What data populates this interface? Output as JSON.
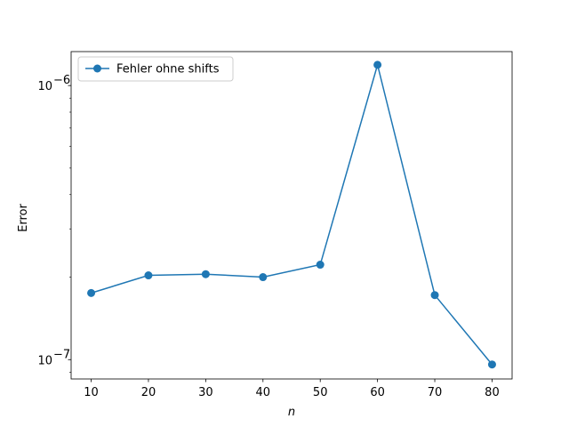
{
  "chart_data": {
    "type": "line",
    "title": "",
    "xlabel": "n",
    "ylabel": "Error",
    "yscale": "log",
    "x": [
      10,
      20,
      30,
      40,
      50,
      60,
      70,
      80
    ],
    "xticks": [
      10,
      20,
      30,
      40,
      50,
      60,
      70,
      80
    ],
    "xlim": [
      6.5,
      83.5
    ],
    "ylim": [
      8.5e-08,
      1.33e-06
    ],
    "yticks": [
      {
        "value": 1e-07,
        "base": "10",
        "exp": "−7"
      },
      {
        "value": 1e-06,
        "base": "10",
        "exp": "−6"
      }
    ],
    "series": [
      {
        "name": "Fehler ohne shifts",
        "color": "#1f77b4",
        "marker": "circle",
        "values": [
          1.75e-07,
          2.03e-07,
          2.05e-07,
          2e-07,
          2.22e-07,
          1.19e-06,
          1.72e-07,
          9.6e-08
        ]
      }
    ],
    "legend": "top-left",
    "grid": false
  }
}
